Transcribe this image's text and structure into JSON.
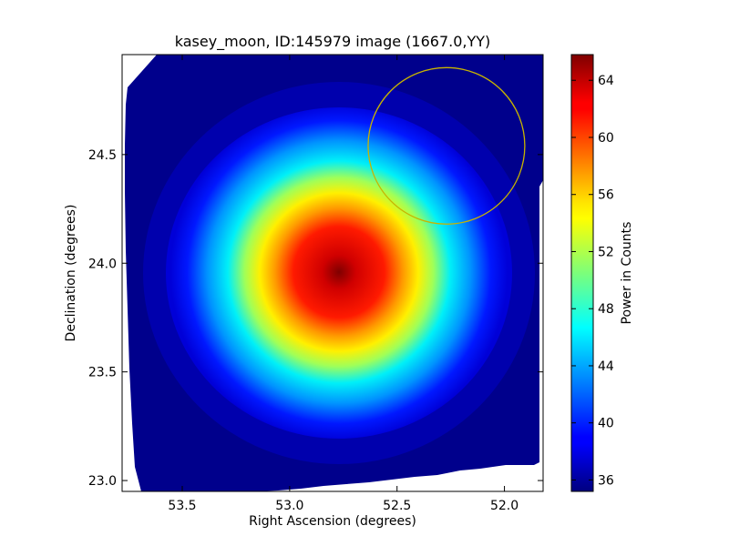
{
  "chart_data": {
    "type": "heatmap",
    "title": "kasey_moon, ID:145979 image (1667.0,YY)",
    "xlabel": "Right Ascension (degrees)",
    "ylabel": "Declination (degrees)",
    "xlim": [
      53.78,
      51.82
    ],
    "ylim": [
      22.95,
      24.96
    ],
    "x_ticks": [
      53.5,
      53.0,
      52.5,
      52.0
    ],
    "x_tick_labels": [
      "53.5",
      "53.0",
      "52.5",
      "52.0"
    ],
    "y_ticks": [
      23.0,
      23.5,
      24.0,
      24.5
    ],
    "y_tick_labels": [
      "23.0",
      "23.5",
      "24.0",
      "24.5"
    ],
    "colormap": "jet",
    "colorbar": {
      "label": "Power in Counts",
      "range": [
        35.2,
        65.8
      ],
      "ticks": [
        36,
        40,
        44,
        48,
        52,
        56,
        60,
        64
      ],
      "tick_labels": [
        "36",
        "40",
        "44",
        "48",
        "52",
        "56",
        "60",
        "64"
      ]
    },
    "peak": {
      "ra": 52.77,
      "dec": 23.96,
      "value": 65.8
    },
    "background_value": 35.5,
    "circle_marker": {
      "ra_center": 52.27,
      "dec_center": 24.54,
      "radius_deg": 0.36,
      "color": "#c8b400"
    },
    "grid": false
  }
}
